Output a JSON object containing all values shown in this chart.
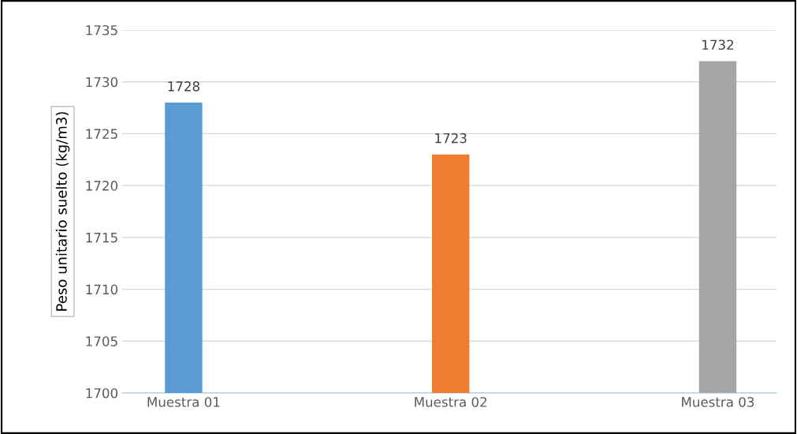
{
  "chart_data": {
    "type": "bar",
    "ylabel": "Peso unitario suelto (kg/m3)",
    "categories": [
      "Muestra 01",
      "Muestra 02",
      "Muestra 03"
    ],
    "values": [
      1728,
      1723,
      1732
    ],
    "colors": [
      "#5b9bd5",
      "#ed7d31",
      "#a5a5a5"
    ],
    "ylim": [
      1700,
      1735
    ],
    "yticks": [
      1700,
      1705,
      1710,
      1715,
      1720,
      1725,
      1730,
      1735
    ],
    "grid": "y",
    "data_labels": true
  }
}
